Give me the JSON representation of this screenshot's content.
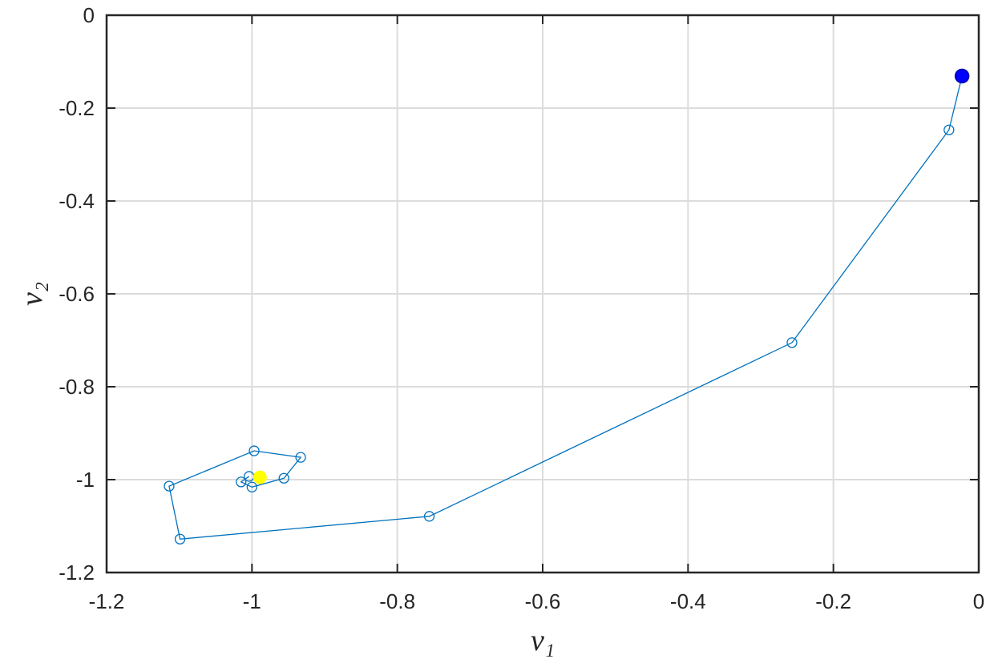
{
  "chart_data": {
    "type": "line",
    "xlabel": "v₁",
    "ylabel": "v₂",
    "xlim": [
      -1.2,
      0
    ],
    "ylim": [
      -1.2,
      0
    ],
    "xticks": [
      -1.2,
      -1,
      -0.8,
      -0.6,
      -0.4,
      -0.2,
      0
    ],
    "yticks": [
      -1.2,
      -1,
      -0.8,
      -0.6,
      -0.4,
      -0.2,
      0
    ],
    "grid": true,
    "series": [
      {
        "color": "#0072bd",
        "line": true,
        "marker": "open-circle",
        "x": [
          -0.023,
          -0.041,
          -0.257,
          -0.756,
          -1.099,
          -1.114,
          -0.997,
          -0.933,
          -0.956,
          -1.0,
          -1.015,
          -1.004
        ],
        "values": [
          -0.131,
          -0.247,
          -0.705,
          -1.079,
          -1.128,
          -1.014,
          -0.938,
          -0.952,
          -0.997,
          -1.016,
          -1.005,
          -0.993
        ]
      },
      {
        "color": "#0000ff",
        "line": false,
        "marker": "filled-circle",
        "x": [
          -0.023
        ],
        "values": [
          -0.131
        ]
      },
      {
        "color": "#ffff00",
        "line": false,
        "marker": "filled-circle",
        "x": [
          -0.989
        ],
        "values": [
          -0.995
        ]
      }
    ]
  }
}
